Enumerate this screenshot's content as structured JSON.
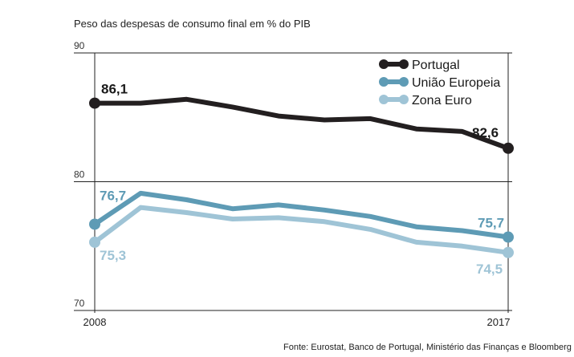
{
  "chart_data": {
    "type": "line",
    "title": "Peso das despesas de consumo final em % do PIB",
    "source": "Fonte: Eurostat, Banco de Portugal, Ministério das Finanças e Bloomberg",
    "x": [
      2008,
      2009,
      2010,
      2011,
      2012,
      2013,
      2014,
      2015,
      2016,
      2017
    ],
    "x_tick_labels": [
      "2008",
      "2017"
    ],
    "y_ticks": [
      "90",
      "80",
      "70"
    ],
    "ylim": [
      70,
      90
    ],
    "grid": true,
    "legend_position": "top-right",
    "series": [
      {
        "name": "Portugal",
        "color": "#231f20",
        "values": [
          86.1,
          86.1,
          86.4,
          85.8,
          85.1,
          84.8,
          84.9,
          84.1,
          83.9,
          82.6
        ],
        "labels": {
          "first": "86,1",
          "last": "82,6"
        }
      },
      {
        "name": "União Europeia",
        "color": "#5e9bb5",
        "values": [
          76.7,
          79.1,
          78.6,
          77.9,
          78.2,
          77.8,
          77.3,
          76.5,
          76.2,
          75.7
        ],
        "labels": {
          "first": "76,7",
          "last": "75,7"
        }
      },
      {
        "name": "Zona Euro",
        "color": "#9fc4d6",
        "values": [
          75.3,
          78.0,
          77.6,
          77.1,
          77.2,
          76.9,
          76.3,
          75.3,
          75.0,
          74.5
        ],
        "labels": {
          "first": "75,3",
          "last": "74,5"
        }
      }
    ]
  }
}
